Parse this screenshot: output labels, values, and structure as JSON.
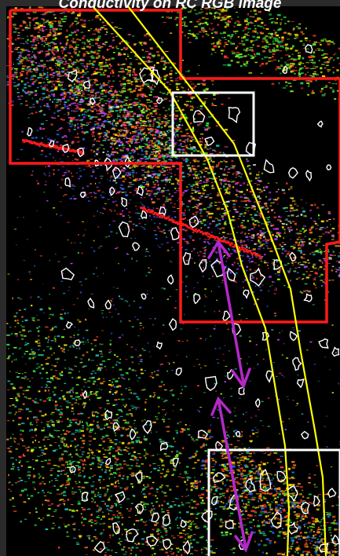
{
  "title": "Conductivity on RC RGB image",
  "colors": {
    "background": "#000000",
    "frame": "#2b2b2b",
    "survey_outline": "#ff1a1a",
    "detail_box": "#ffffff",
    "corridor": "#ffff00",
    "arrow": "#b428c8",
    "anomaly_outline": "#ffffff"
  },
  "legend": []
}
